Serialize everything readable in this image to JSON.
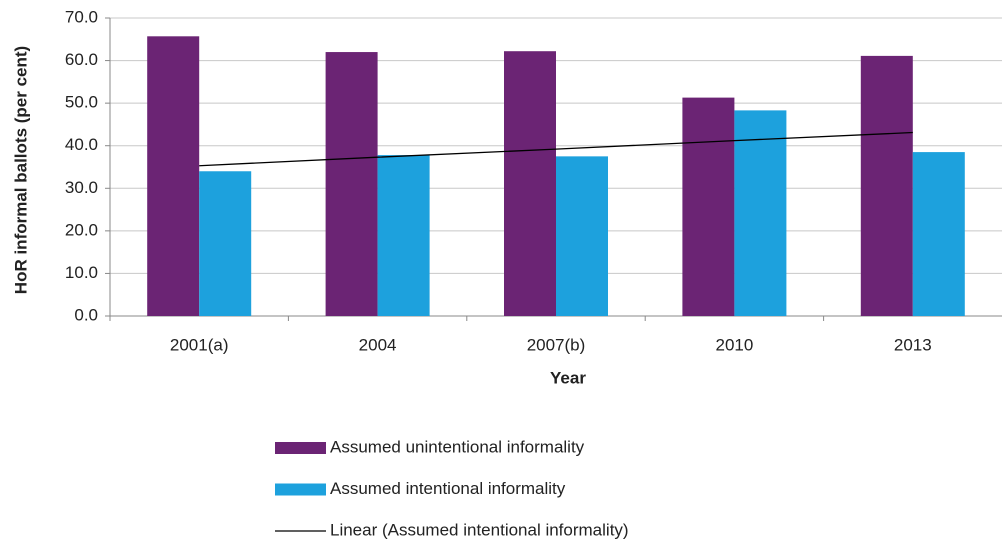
{
  "chart_data": {
    "type": "bar",
    "x_label": "Year",
    "y_label": "HoR informal ballots (per cent)",
    "categories": [
      "2001(a)",
      "2004",
      "2007(b)",
      "2010",
      "2013"
    ],
    "series": [
      {
        "name": "Assumed unintentional informality",
        "color": "#6b2474",
        "values": [
          65.7,
          62.0,
          62.2,
          51.3,
          61.1
        ]
      },
      {
        "name": "Assumed intentional informality",
        "color": "#1da1dd",
        "values": [
          34.0,
          37.8,
          37.5,
          48.3,
          38.5
        ]
      },
      {
        "name": "Linear (Assumed intentional informality)",
        "color": "#000000",
        "type": "line",
        "values": [
          35.3,
          37.3,
          39.2,
          41.2,
          43.1
        ]
      }
    ],
    "ylim": [
      0,
      70
    ],
    "yticks": [
      {
        "value": 0,
        "label": "0.0"
      },
      {
        "value": 10,
        "label": "10.0"
      },
      {
        "value": 20,
        "label": "20.0"
      },
      {
        "value": 30,
        "label": "30.0"
      },
      {
        "value": 40,
        "label": "40.0"
      },
      {
        "value": 50,
        "label": "50.0"
      },
      {
        "value": 60,
        "label": "60.0"
      },
      {
        "value": 70,
        "label": "70.0"
      }
    ],
    "grid": true,
    "legend": "bottom"
  }
}
